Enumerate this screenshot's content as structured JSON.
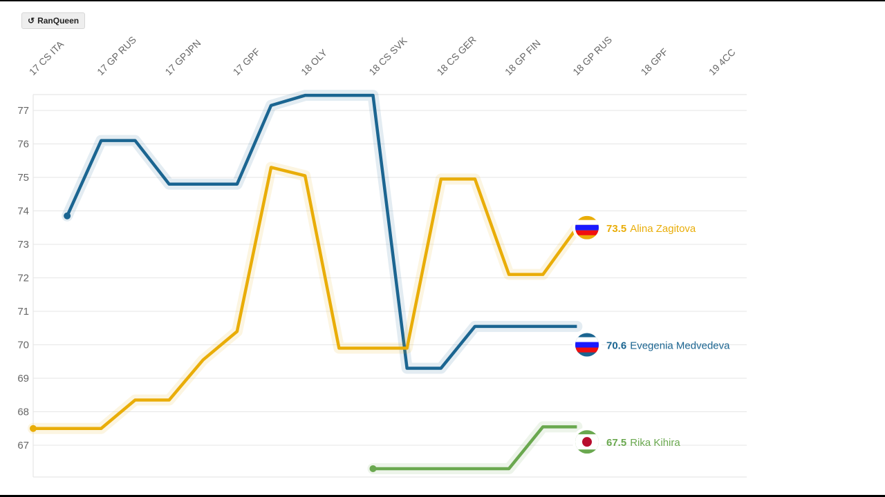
{
  "toolbar": {
    "button_label": "RanQueen",
    "button_icon": "rotate-ccw-icon"
  },
  "chart_data": {
    "type": "line",
    "categories": [
      "17 CS ITA",
      "17 GP RUS",
      "17 GPJPN",
      "17 GPF",
      "18 OLY",
      "18 CS SVK",
      "18 CS GER",
      "18 GP FIN",
      "18 GP RUS",
      "18 GPF",
      "19 4CC"
    ],
    "ylim": [
      66,
      77.5
    ],
    "yticks": [
      67,
      68,
      69,
      70,
      71,
      72,
      73,
      74,
      75,
      76,
      77
    ],
    "grid": true,
    "x_step_note": "x values are category index units (0.5 = between categories)",
    "series": [
      {
        "name": "Evegenia Medvedeva",
        "label_value": "70.6",
        "color": "#1b6591",
        "flag": "russia",
        "label_y": 70.0,
        "x": [
          0.5,
          1,
          1.5,
          2,
          2.5,
          3,
          3.5,
          4,
          4.5,
          5,
          5.5,
          6,
          6.5,
          7,
          7.5,
          8
        ],
        "values": [
          73.85,
          76.1,
          76.1,
          74.8,
          74.8,
          74.8,
          77.15,
          77.45,
          77.45,
          77.45,
          69.3,
          69.3,
          70.55,
          70.55,
          70.55,
          70.55
        ]
      },
      {
        "name": "Alina Zagitova",
        "label_value": "73.5",
        "color": "#e9ad08",
        "flag": "russia",
        "label_y": 73.5,
        "x": [
          0,
          0.5,
          1,
          1.5,
          2,
          2.5,
          3,
          3.5,
          4,
          4.5,
          5,
          5.5,
          6,
          6.5,
          7,
          7.5,
          8
        ],
        "values": [
          67.5,
          67.5,
          67.5,
          68.35,
          68.35,
          69.55,
          70.4,
          75.3,
          75.05,
          69.9,
          69.9,
          69.9,
          74.95,
          74.95,
          72.1,
          72.1,
          73.5
        ]
      },
      {
        "name": "Rika Kihira",
        "label_value": "67.5",
        "color": "#6aa84f",
        "flag": "japan",
        "label_y": 67.1,
        "x": [
          5,
          5.5,
          6,
          6.5,
          7,
          7.5,
          8
        ],
        "values": [
          66.3,
          66.3,
          66.3,
          66.3,
          66.3,
          67.55,
          67.55
        ]
      }
    ]
  }
}
